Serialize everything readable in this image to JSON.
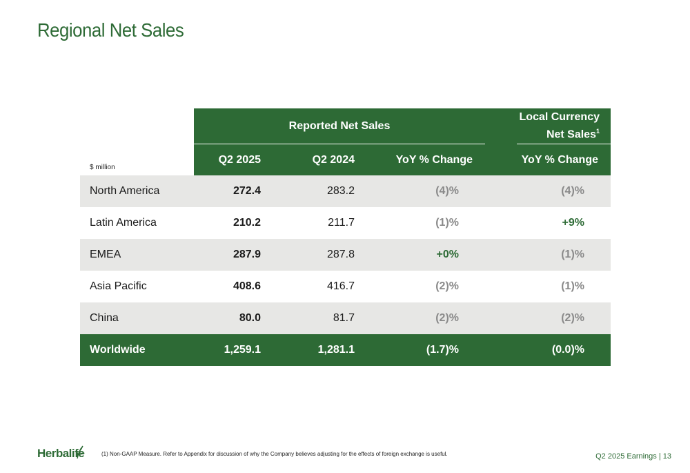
{
  "title": "Regional Net Sales",
  "table": {
    "units": "$ million",
    "group_reported": "Reported Net Sales",
    "group_local_line1": "Local Currency",
    "group_local_line2": "Net Sales",
    "group_local_sup": "1",
    "columns": [
      "Q2 2025",
      "Q2 2024",
      "YoY % Change",
      "YoY % Change"
    ],
    "rows": [
      {
        "region": "North America",
        "q2_2025": "272.4",
        "q2_2024": "283.2",
        "yoy": "(4)%",
        "local_yoy": "(4)%"
      },
      {
        "region": "Latin America",
        "q2_2025": "210.2",
        "q2_2024": "211.7",
        "yoy": "(1)%",
        "local_yoy": "+9%"
      },
      {
        "region": "EMEA",
        "q2_2025": "287.9",
        "q2_2024": "287.8",
        "yoy": "+0%",
        "local_yoy": "(1)%"
      },
      {
        "region": "Asia Pacific",
        "q2_2025": "408.6",
        "q2_2024": "416.7",
        "yoy": "(2)%",
        "local_yoy": "(1)%"
      },
      {
        "region": "China",
        "q2_2025": "80.0",
        "q2_2024": "81.7",
        "yoy": "(2)%",
        "local_yoy": "(2)%"
      }
    ],
    "total": {
      "region": "Worldwide",
      "q2_2025": "1,259.1",
      "q2_2024": "1,281.1",
      "yoy": "(1.7)%",
      "local_yoy": "(0.0)%"
    }
  },
  "footer": {
    "logo_text": "Herbalife",
    "footnote": "(1)   Non-GAAP Measure. Refer to Appendix for discussion of why the Company believes adjusting for the effects of foreign exchange is useful.",
    "page_label": "Q2 2025 Earnings  |  13"
  },
  "colors": {
    "brand_green": "#2d6a35",
    "title_green": "#2e6b36",
    "row_shade": "#e7e7e5",
    "negative_gray": "#8a8a8a"
  },
  "icons": [
    "herbalife-leaf-icon"
  ]
}
